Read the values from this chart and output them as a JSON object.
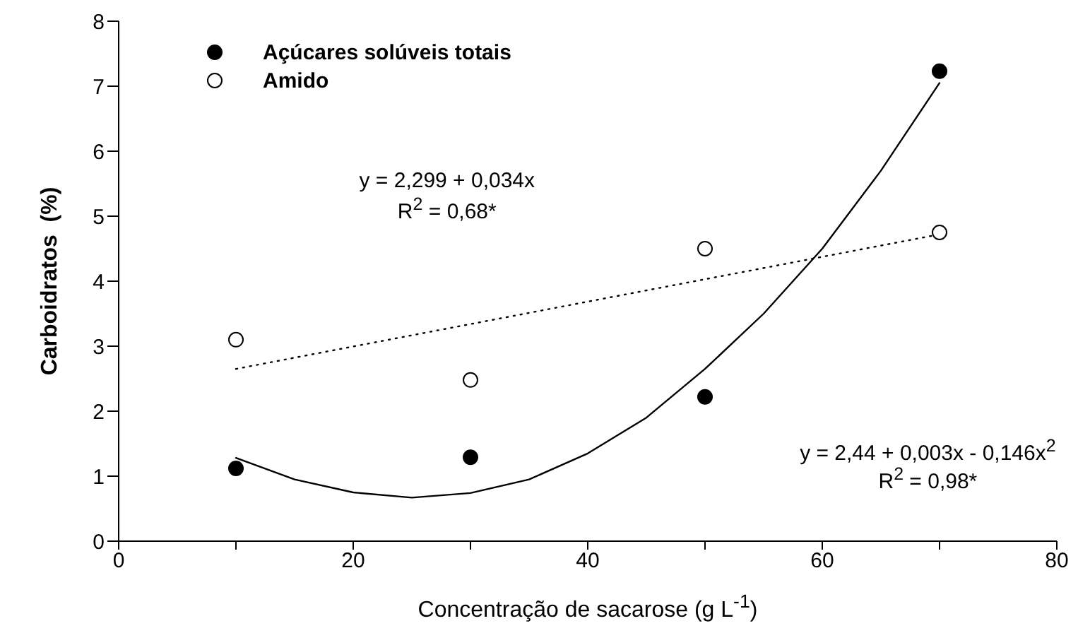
{
  "chart_data": {
    "type": "scatter",
    "xlabel": "Concentração de sacarose (g L$^{-1}$)",
    "ylabel": "Carboidratos  (%)",
    "x": [
      10,
      30,
      50,
      70
    ],
    "series": [
      {
        "name": "Açúcares solúveis totais",
        "color": "#000000",
        "values": [
          1.12,
          1.29,
          2.22,
          7.23
        ]
      },
      {
        "name": "Amido",
        "color": "#ffffff",
        "values": [
          3.1,
          2.48,
          4.5,
          4.75
        ]
      },
      {
        "type": "line",
        "color": "#000000",
        "line_style": "solid",
        "marker": "none",
        "x": [
          10,
          15,
          20,
          25,
          30,
          35,
          40,
          45,
          50,
          55,
          60,
          65,
          70
        ],
        "values": [
          1.28,
          0.95,
          0.75,
          0.67,
          0.74,
          0.95,
          1.35,
          1.9,
          2.65,
          3.5,
          4.5,
          5.7,
          7.05
        ]
      },
      {
        "type": "line",
        "color": "#000000",
        "line_style": "dotted",
        "marker": "none",
        "x": [
          10,
          70
        ],
        "values": [
          2.65,
          4.72
        ]
      }
    ],
    "xlim": [
      0,
      80
    ],
    "xticks": [
      0,
      {
        "value": 10,
        "label": null
      },
      20,
      {
        "value": 30,
        "label": null
      },
      40,
      {
        "value": 50,
        "label": null
      },
      60,
      {
        "value": 70,
        "label": null
      },
      80
    ],
    "ylim": [
      0,
      8
    ],
    "yticks": [
      0,
      1,
      2,
      3,
      4,
      5,
      6,
      7,
      8
    ],
    "marker": "circle",
    "legend": "top left",
    "grid": false,
    "annotations": [
      "y = 2,299 + 0,034x",
      "R$^{2}$ = 0,68*",
      "y =  2,44 + 0,003x - 0,146x$^{2}$",
      "R$^{2}$ = 0,98*"
    ]
  }
}
